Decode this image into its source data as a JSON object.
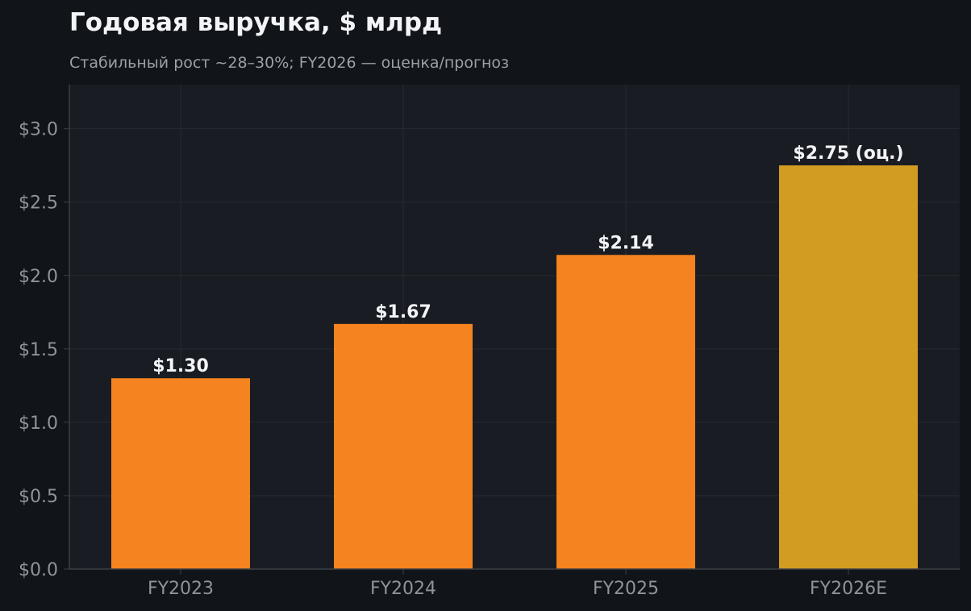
{
  "chart_data": {
    "type": "bar",
    "title": "Годовая выручка, $ млрд",
    "subtitle": "Стабильный рост ~28–30%; FY2026 — оценка/прогноз",
    "categories": [
      "FY2023",
      "FY2024",
      "FY2025",
      "FY2026E"
    ],
    "values": [
      1.3,
      1.67,
      2.14,
      2.75
    ],
    "data_labels": [
      "$1.30",
      "$1.67",
      "$2.14",
      "$2.75 (оц.)"
    ],
    "ylim": [
      0,
      3.3
    ],
    "yticks": [
      0,
      0.5,
      1.0,
      1.5,
      2.0,
      2.5,
      3.0
    ],
    "ytick_labels": [
      "$0.0",
      "$0.5",
      "$1.0",
      "$1.5",
      "$2.0",
      "$2.5",
      "$3.0"
    ],
    "grid": true,
    "bar_colors": [
      "#f5831f",
      "#f5831f",
      "#f5831f",
      "#d29b22"
    ],
    "colors": {
      "background": "#111418",
      "plot_background": "#191c22",
      "grid": "#262a31",
      "axis": "#3a3f47"
    }
  }
}
